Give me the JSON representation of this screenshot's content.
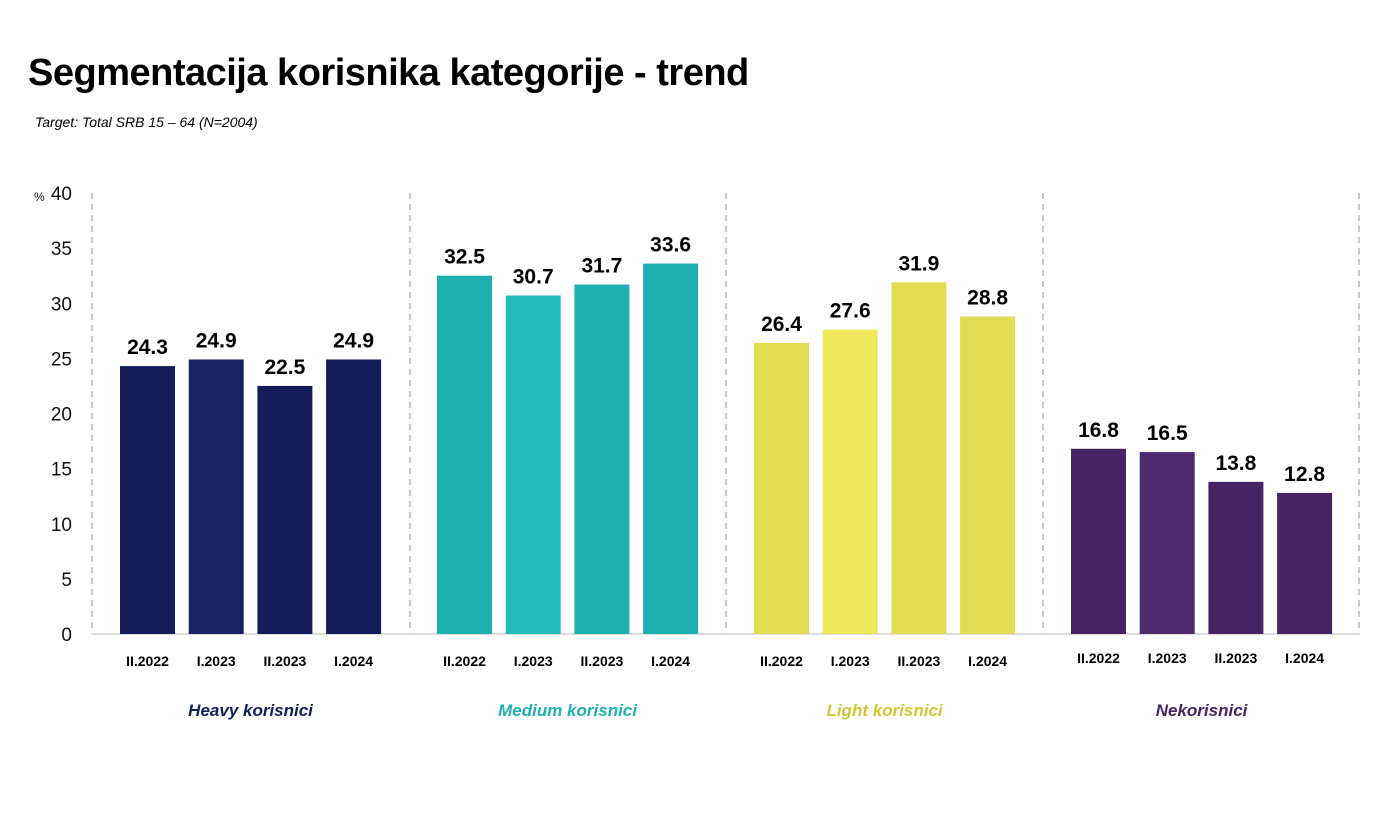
{
  "header": {
    "title": "Segmentacija korisnika kategorije - trend",
    "subtitle": "Target: Total SRB 15 – 64 (N=2004)"
  },
  "chart_data": {
    "type": "bar",
    "title": "Segmentacija korisnika kategorije - trend",
    "subtitle": "Target: Total SRB 15 – 64 (N=2004)",
    "y_unit": "%",
    "ylim": [
      0,
      40
    ],
    "yticks": [
      "0",
      "5",
      "10",
      "15",
      "20",
      "25",
      "30",
      "35",
      "40"
    ],
    "grid": false,
    "groups": [
      {
        "name": "Heavy korisnici",
        "color": "#131C58",
        "label_color": "#131C58",
        "categories": [
          "II.2022",
          "I.2023",
          "II.2023",
          "I.2024"
        ],
        "values": [
          24.3,
          24.9,
          22.5,
          24.9
        ],
        "value_labels": [
          "24.3",
          "24.9",
          "22.5",
          "24.9"
        ],
        "bar_colors": [
          "#131C58",
          "#1A2262",
          "#131C58",
          "#131C58"
        ]
      },
      {
        "name": "Medium korisnici",
        "color": "#1EB0AE",
        "label_color": "#1EB0AE",
        "categories": [
          "II.2022",
          "I.2023",
          "II.2023",
          "I.2024"
        ],
        "values": [
          32.5,
          30.7,
          31.7,
          33.6
        ],
        "value_labels": [
          "32.5",
          "30.7",
          "31.7",
          "33.6"
        ],
        "bar_colors": [
          "#1EB0AE",
          "#22BBB9",
          "#1EB0AE",
          "#1EB0AE"
        ]
      },
      {
        "name": "Light korisnici",
        "color": "#E2DC52",
        "label_color": "#CFC930",
        "categories": [
          "II.2022",
          "I.2023",
          "II.2023",
          "I.2024"
        ],
        "values": [
          26.4,
          27.6,
          31.9,
          28.8
        ],
        "value_labels": [
          "26.4",
          "27.6",
          "31.9",
          "28.8"
        ],
        "bar_colors": [
          "#E2DC52",
          "#EFE85B",
          "#E2DC52",
          "#E2DC52"
        ]
      },
      {
        "name": "Nekorisnici",
        "color": "#442463",
        "label_color": "#442463",
        "categories": [
          "II.2022",
          "I.2023",
          "II.2023",
          "I.2024"
        ],
        "values": [
          16.8,
          16.5,
          13.8,
          12.8
        ],
        "value_labels": [
          "16.8",
          "16.5",
          "13.8",
          "12.8"
        ],
        "bar_colors": [
          "#442463",
          "#4B2A6E",
          "#442463",
          "#442463"
        ]
      }
    ]
  }
}
